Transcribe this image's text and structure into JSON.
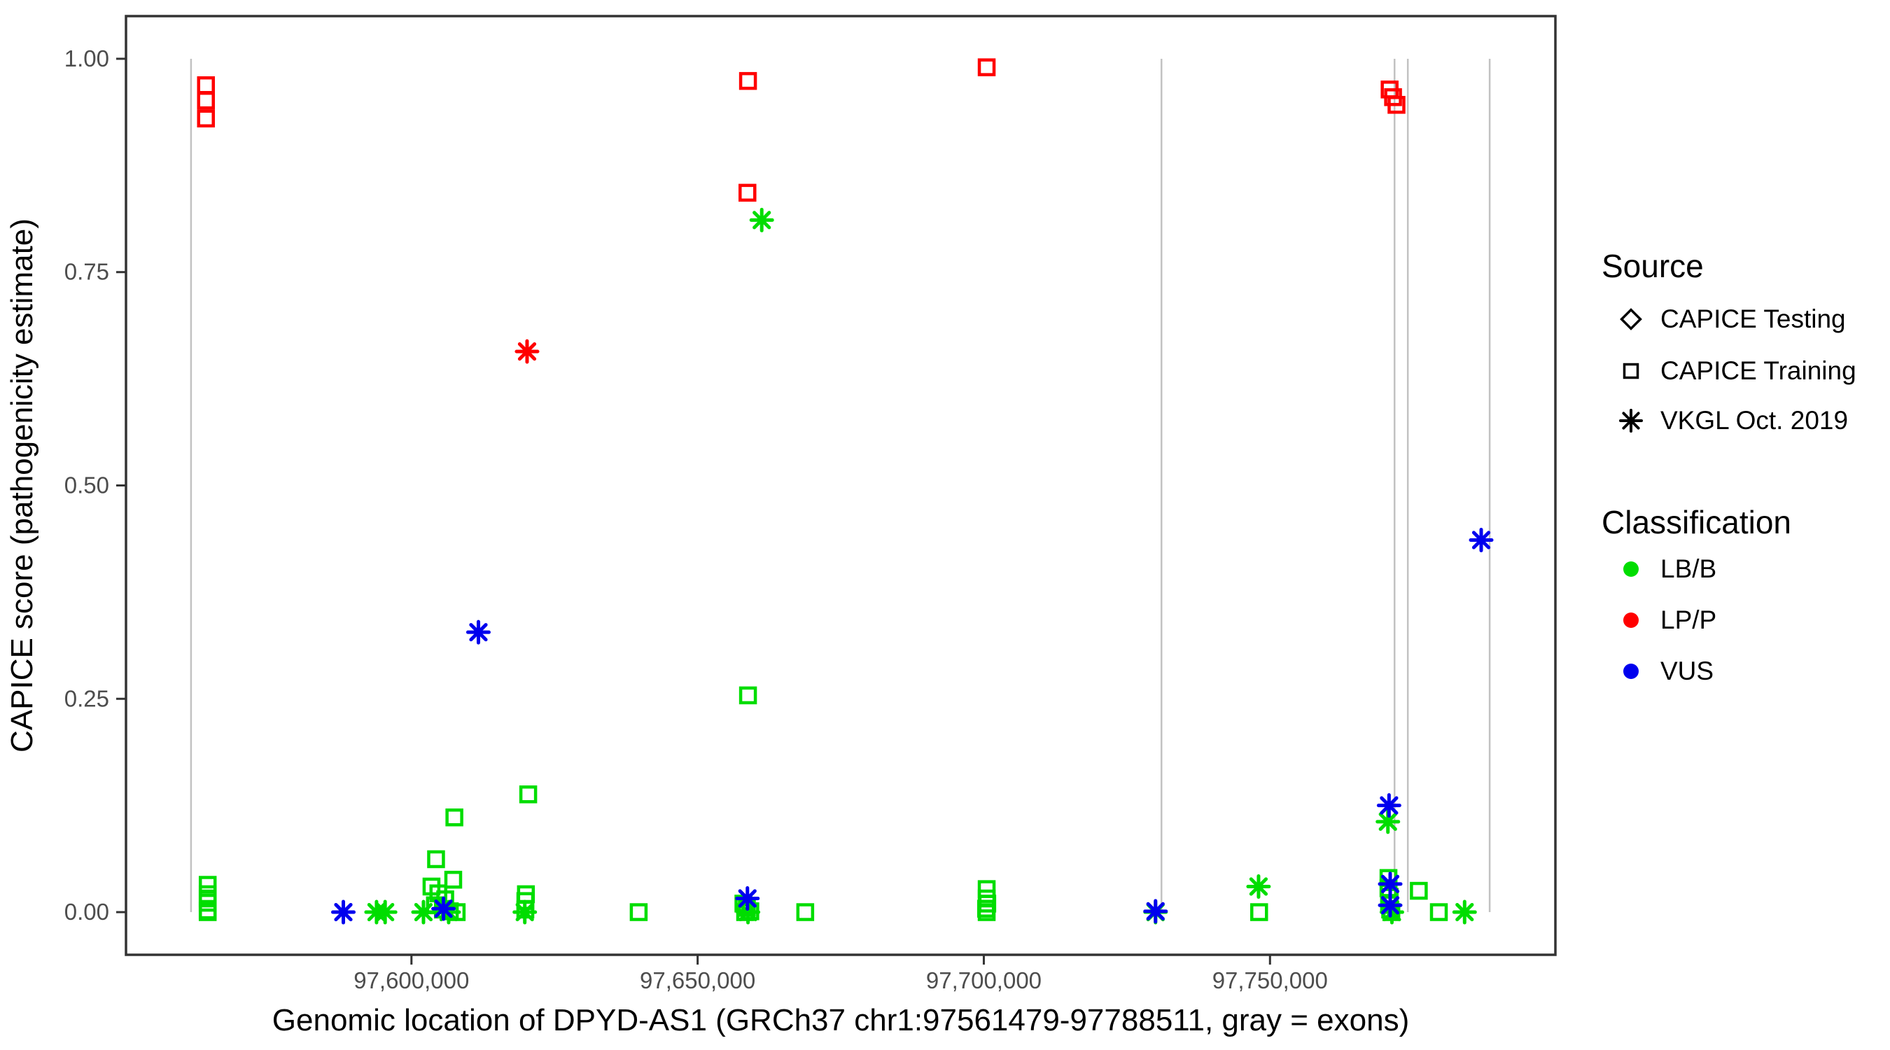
{
  "figure": {
    "x_axis": {
      "title": "Genomic location of DPYD-AS1 (GRCh37 chr1:97561479-97788511, gray = exons)",
      "tick_values": [
        97600000,
        97650000,
        97700000,
        97750000
      ],
      "tick_labels": [
        "97,600,000",
        "97,650,000",
        "97,700,000",
        "97,750,000"
      ],
      "domain": [
        97550127,
        97799863
      ]
    },
    "y_axis": {
      "title": "CAPICE score (pathogenicity estimate)",
      "tick_values": [
        0,
        0.25,
        0.5,
        0.75,
        1.0
      ],
      "tick_labels": [
        "0.00",
        "0.25",
        "0.50",
        "0.75",
        "1.00"
      ],
      "domain": [
        -0.05,
        1.05
      ]
    },
    "legend": {
      "source": {
        "title": "Source",
        "items": [
          {
            "shape": "diamond",
            "label": "CAPICE Testing"
          },
          {
            "shape": "square",
            "label": "CAPICE Training"
          },
          {
            "shape": "asterisk",
            "label": "VKGL Oct. 2019"
          }
        ]
      },
      "classification": {
        "title": "Classification",
        "items": [
          {
            "label": "LB/B",
            "color": "#00DD00"
          },
          {
            "label": "LP/P",
            "color": "#FF0000"
          },
          {
            "label": "VUS",
            "color": "#0000EE"
          }
        ]
      }
    },
    "colors": {
      "LB/B": "#00DD00",
      "LP/P": "#FF0000",
      "VUS": "#0000EE",
      "exon_line": "#C2C2C2",
      "tick_text": "#4D4D4D",
      "axis_line": "#333333"
    }
  },
  "chart_data": {
    "type": "scatter",
    "title": "",
    "xlabel": "Genomic location of DPYD-AS1 (GRCh37 chr1:97561479-97788511, gray = exons)",
    "ylabel": "CAPICE score (pathogenicity estimate)",
    "x_domain": [
      97550127,
      97799863
    ],
    "y_domain": [
      -0.05,
      1.05
    ],
    "grid": false,
    "legend_position": "right",
    "source_shapes": {
      "CAPICE Testing": "diamond",
      "CAPICE Training": "square",
      "VKGL Oct. 2019": "asterisk"
    },
    "exon_lines_x": [
      97561490,
      97731040,
      97771760,
      97774080,
      97788380
    ],
    "exon_line_y_extent": [
      0,
      1
    ],
    "points_format": [
      "genomic_position",
      "capice_score",
      "source",
      "classification"
    ],
    "points": [
      [
        97564400,
        0.032,
        "CAPICE Training",
        "LB/B"
      ],
      [
        97564400,
        0.021,
        "CAPICE Training",
        "LB/B"
      ],
      [
        97564400,
        0.016,
        "CAPICE Training",
        "LB/B"
      ],
      [
        97564400,
        0.011,
        "CAPICE Training",
        "LB/B"
      ],
      [
        97564400,
        0.002,
        "CAPICE Training",
        "LB/B"
      ],
      [
        97564400,
        0.0,
        "CAPICE Training",
        "LB/B"
      ],
      [
        97604300,
        0.062,
        "CAPICE Training",
        "LB/B"
      ],
      [
        97607500,
        0.111,
        "CAPICE Training",
        "LB/B"
      ],
      [
        97607300,
        0.038,
        "CAPICE Training",
        "LB/B"
      ],
      [
        97603500,
        0.03,
        "CAPICE Training",
        "LB/B"
      ],
      [
        97604700,
        0.022,
        "CAPICE Training",
        "LB/B"
      ],
      [
        97605900,
        0.015,
        "CAPICE Training",
        "LB/B"
      ],
      [
        97604100,
        0.008,
        "CAPICE Training",
        "LB/B"
      ],
      [
        97605500,
        0.003,
        "CAPICE Training",
        "LB/B"
      ],
      [
        97606700,
        0.001,
        "CAPICE Training",
        "LB/B"
      ],
      [
        97607900,
        0.0,
        "CAPICE Training",
        "LB/B"
      ],
      [
        97620400,
        0.138,
        "CAPICE Training",
        "LB/B"
      ],
      [
        97620000,
        0.021,
        "CAPICE Training",
        "LB/B"
      ],
      [
        97619900,
        0.013,
        "CAPICE Training",
        "LB/B"
      ],
      [
        97619900,
        0.003,
        "CAPICE Training",
        "LB/B"
      ],
      [
        97639700,
        0.0,
        "CAPICE Training",
        "LB/B"
      ],
      [
        97658000,
        0.01,
        "CAPICE Training",
        "LB/B"
      ],
      [
        97658600,
        0.005,
        "CAPICE Training",
        "LB/B"
      ],
      [
        97659200,
        0.001,
        "CAPICE Training",
        "LB/B"
      ],
      [
        97658300,
        0.0,
        "CAPICE Training",
        "LB/B"
      ],
      [
        97658800,
        0.254,
        "CAPICE Training",
        "LB/B"
      ],
      [
        97668800,
        0.0,
        "CAPICE Training",
        "LB/B"
      ],
      [
        97700500,
        0.027,
        "CAPICE Training",
        "LB/B"
      ],
      [
        97700500,
        0.016,
        "CAPICE Training",
        "LB/B"
      ],
      [
        97700600,
        0.01,
        "CAPICE Training",
        "LB/B"
      ],
      [
        97700400,
        0.004,
        "CAPICE Training",
        "LB/B"
      ],
      [
        97700500,
        0.0,
        "CAPICE Training",
        "LB/B"
      ],
      [
        97748100,
        0.0,
        "CAPICE Training",
        "LB/B"
      ],
      [
        97770700,
        0.04,
        "CAPICE Training",
        "LB/B"
      ],
      [
        97770700,
        0.028,
        "CAPICE Training",
        "LB/B"
      ],
      [
        97770900,
        0.018,
        "CAPICE Training",
        "LB/B"
      ],
      [
        97770800,
        0.009,
        "CAPICE Training",
        "LB/B"
      ],
      [
        97771000,
        0.003,
        "CAPICE Training",
        "LB/B"
      ],
      [
        97771200,
        0.0,
        "CAPICE Training",
        "LB/B"
      ],
      [
        97776000,
        0.025,
        "CAPICE Training",
        "LB/B"
      ],
      [
        97779500,
        0.0,
        "CAPICE Training",
        "LB/B"
      ],
      [
        97593900,
        0.0,
        "VKGL Oct. 2019",
        "LB/B"
      ],
      [
        97595400,
        0.0,
        "VKGL Oct. 2019",
        "LB/B"
      ],
      [
        97602100,
        0.0,
        "VKGL Oct. 2019",
        "LB/B"
      ],
      [
        97606500,
        0.0,
        "VKGL Oct. 2019",
        "LB/B"
      ],
      [
        97619800,
        0.0,
        "VKGL Oct. 2019",
        "LB/B"
      ],
      [
        97661200,
        0.811,
        "VKGL Oct. 2019",
        "LB/B"
      ],
      [
        97658800,
        0.0,
        "VKGL Oct. 2019",
        "LB/B"
      ],
      [
        97730000,
        0.0,
        "VKGL Oct. 2019",
        "LB/B"
      ],
      [
        97748000,
        0.03,
        "VKGL Oct. 2019",
        "LB/B"
      ],
      [
        97770600,
        0.106,
        "VKGL Oct. 2019",
        "LB/B"
      ],
      [
        97771300,
        0.0,
        "VKGL Oct. 2019",
        "LB/B"
      ],
      [
        97784000,
        0.0,
        "VKGL Oct. 2019",
        "LB/B"
      ],
      [
        97564100,
        0.969,
        "CAPICE Training",
        "LP/P"
      ],
      [
        97564100,
        0.951,
        "CAPICE Training",
        "LP/P"
      ],
      [
        97564100,
        0.93,
        "CAPICE Training",
        "LP/P"
      ],
      [
        97658800,
        0.974,
        "CAPICE Training",
        "LP/P"
      ],
      [
        97658700,
        0.843,
        "CAPICE Training",
        "LP/P"
      ],
      [
        97700500,
        0.99,
        "CAPICE Training",
        "LP/P"
      ],
      [
        97770900,
        0.964,
        "CAPICE Training",
        "LP/P"
      ],
      [
        97771500,
        0.955,
        "CAPICE Training",
        "LP/P"
      ],
      [
        97772100,
        0.946,
        "CAPICE Training",
        "LP/P"
      ],
      [
        97620200,
        0.657,
        "VKGL Oct. 2019",
        "LP/P"
      ],
      [
        97588100,
        0.0,
        "VKGL Oct. 2019",
        "VUS"
      ],
      [
        97605600,
        0.004,
        "VKGL Oct. 2019",
        "VUS"
      ],
      [
        97611700,
        0.328,
        "VKGL Oct. 2019",
        "VUS"
      ],
      [
        97658700,
        0.016,
        "VKGL Oct. 2019",
        "VUS"
      ],
      [
        97730000,
        0.001,
        "VKGL Oct. 2019",
        "VUS"
      ],
      [
        97770800,
        0.125,
        "VKGL Oct. 2019",
        "VUS"
      ],
      [
        97771000,
        0.033,
        "VKGL Oct. 2019",
        "VUS"
      ],
      [
        97771000,
        0.008,
        "VKGL Oct. 2019",
        "VUS"
      ],
      [
        97786900,
        0.436,
        "VKGL Oct. 2019",
        "VUS"
      ]
    ]
  }
}
